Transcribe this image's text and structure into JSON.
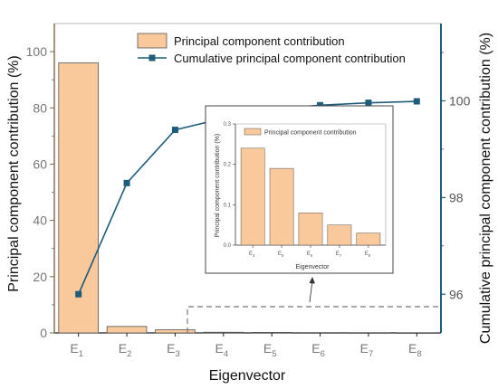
{
  "chart_data": [
    {
      "type": "bar+line",
      "categories": [
        "E1",
        "E2",
        "E3",
        "E4",
        "E5",
        "E6",
        "E7",
        "E8"
      ],
      "category_labels": [
        {
          "main": "E",
          "sub": "1"
        },
        {
          "main": "E",
          "sub": "2"
        },
        {
          "main": "E",
          "sub": "3"
        },
        {
          "main": "E",
          "sub": "4"
        },
        {
          "main": "E",
          "sub": "5"
        },
        {
          "main": "E",
          "sub": "6"
        },
        {
          "main": "E",
          "sub": "7"
        },
        {
          "main": "E",
          "sub": "8"
        }
      ],
      "series": [
        {
          "name": "Principal component contribution",
          "kind": "bar",
          "axis": "left",
          "values": [
            96.0,
            2.3,
            1.1,
            0.24,
            0.19,
            0.08,
            0.05,
            0.03
          ]
        },
        {
          "name": "Cumulative principal component contribution",
          "kind": "line",
          "axis": "right",
          "values": [
            96.0,
            98.3,
            99.4,
            99.64,
            99.83,
            99.91,
            99.96,
            99.99
          ]
        }
      ],
      "xlabel": "Eigenvector",
      "ylabel": "Principal component contribution (%)",
      "y2label": "Cumulative principal component contribution (%)",
      "ylim": [
        0,
        110
      ],
      "y2lim": [
        95.2,
        101.6
      ],
      "yticks": [
        0,
        20,
        40,
        60,
        80,
        100
      ],
      "y2ticks": [
        96,
        98,
        100
      ],
      "legend": "top-center",
      "grid": false,
      "colors": {
        "bar_fill": "#f9c89b",
        "bar_stroke": "#555555",
        "line": "#1f5c7a",
        "left_axis": "#7a6a4a",
        "right_axis": "#1f5c7a"
      }
    },
    {
      "type": "bar",
      "role": "inset",
      "categories": [
        "E4",
        "E5",
        "E6",
        "E7",
        "E8"
      ],
      "category_labels": [
        {
          "main": "E",
          "sub": "4"
        },
        {
          "main": "E",
          "sub": "5"
        },
        {
          "main": "E",
          "sub": "6"
        },
        {
          "main": "E",
          "sub": "7"
        },
        {
          "main": "E",
          "sub": "8"
        }
      ],
      "values": [
        0.24,
        0.19,
        0.08,
        0.05,
        0.03
      ],
      "series_name": "Principal component contribution",
      "xlabel": "Eigenvector",
      "ylabel": "Principal component contribution (%)",
      "ylim": [
        0,
        0.3
      ],
      "yticks": [
        "0.0",
        "0.1",
        "0.2",
        "0.3"
      ],
      "legend": "top-left"
    }
  ]
}
